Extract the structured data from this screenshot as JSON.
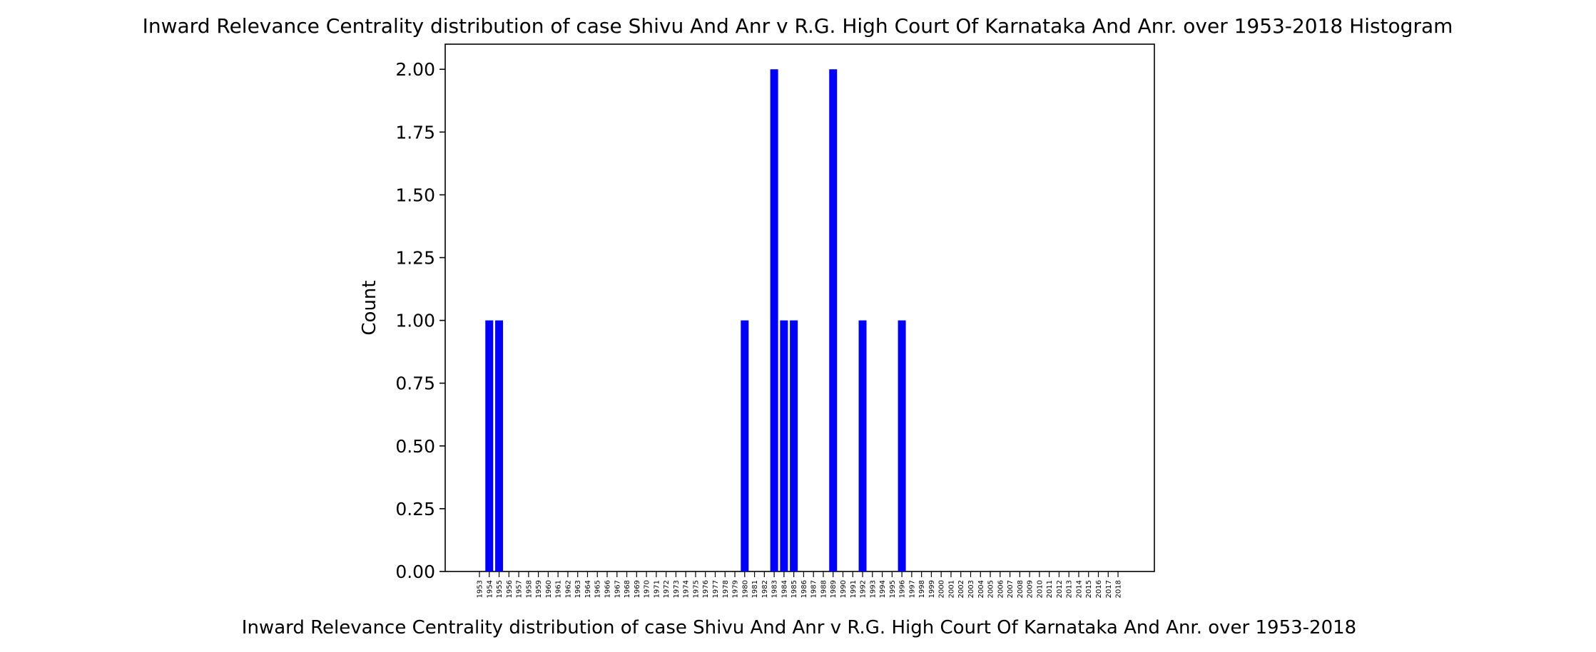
{
  "chart_data": {
    "type": "bar",
    "title": "Inward Relevance Centrality distribution of case Shivu And Anr v R.G. High Court Of Karnataka And Anr. over 1953-2018 Histogram",
    "xlabel": "Inward Relevance Centrality distribution of case Shivu And Anr v R.G. High Court Of Karnataka And Anr. over 1953-2018",
    "ylabel": "Count",
    "ylim": [
      0,
      2.1
    ],
    "yticks": [
      "0.00",
      "0.25",
      "0.50",
      "0.75",
      "1.00",
      "1.25",
      "1.50",
      "1.75",
      "2.00"
    ],
    "ytick_values": [
      0,
      0.25,
      0.5,
      0.75,
      1.0,
      1.25,
      1.5,
      1.75,
      2.0
    ],
    "categories": [
      "1953",
      "1954",
      "1955",
      "1956",
      "1957",
      "1958",
      "1959",
      "1960",
      "1961",
      "1962",
      "1963",
      "1964",
      "1965",
      "1966",
      "1967",
      "1968",
      "1969",
      "1970",
      "1971",
      "1972",
      "1973",
      "1974",
      "1975",
      "1976",
      "1977",
      "1978",
      "1979",
      "1980",
      "1981",
      "1982",
      "1983",
      "1984",
      "1985",
      "1986",
      "1987",
      "1988",
      "1989",
      "1990",
      "1991",
      "1992",
      "1993",
      "1994",
      "1995",
      "1996",
      "1997",
      "1998",
      "1999",
      "2000",
      "2001",
      "2002",
      "2003",
      "2004",
      "2005",
      "2006",
      "2007",
      "2008",
      "2009",
      "2010",
      "2011",
      "2012",
      "2013",
      "2014",
      "2015",
      "2016",
      "2017",
      "2018"
    ],
    "values": [
      0,
      1,
      1,
      0,
      0,
      0,
      0,
      0,
      0,
      0,
      0,
      0,
      0,
      0,
      0,
      0,
      0,
      0,
      0,
      0,
      0,
      0,
      0,
      0,
      0,
      0,
      0,
      1,
      0,
      0,
      2,
      1,
      1,
      0,
      0,
      0,
      2,
      0,
      0,
      1,
      0,
      0,
      0,
      1,
      0,
      0,
      0,
      0,
      0,
      0,
      0,
      0,
      0,
      0,
      0,
      0,
      0,
      0,
      0,
      0,
      0,
      0,
      0,
      0,
      0,
      0
    ],
    "bar_color": "#0000ff",
    "grid": false,
    "legend": "none"
  }
}
